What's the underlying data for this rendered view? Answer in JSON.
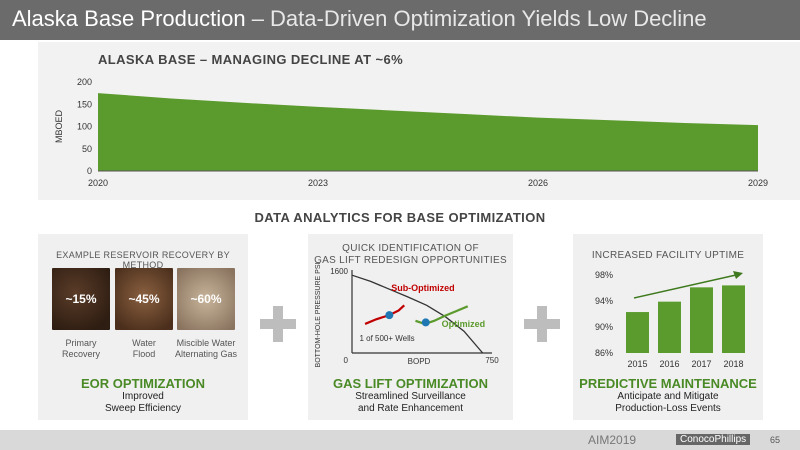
{
  "title": {
    "strong": "Alaska Base Production",
    "light": " – Data-Driven Optimization Yields Low Decline"
  },
  "top_chart": {
    "title": "ALASKA BASE – MANAGING DECLINE AT ~6%"
  },
  "mid_title": "DATA ANALYTICS FOR BASE OPTIMIZATION",
  "panel1": {
    "label": "EXAMPLE RESERVOIR RECOVERY BY METHOD",
    "rocks": [
      {
        "pct": "~15%",
        "label_l1": "Primary",
        "label_l2": "Recovery"
      },
      {
        "pct": "~45%",
        "label_l1": "Water",
        "label_l2": "Flood"
      },
      {
        "pct": "~60%",
        "label_l1": "Miscible Water",
        "label_l2": "Alternating Gas"
      }
    ],
    "heading": "EOR OPTIMIZATION",
    "sub_l1": "Improved",
    "sub_l2": "Sweep Efficiency"
  },
  "panel2": {
    "label_l1": "QUICK IDENTIFICATION OF",
    "label_l2": "GAS LIFT REDESIGN OPPORTUNITIES",
    "heading": "GAS LIFT OPTIMIZATION",
    "sub_l1": "Streamlined Surveillance",
    "sub_l2": "and Rate Enhancement"
  },
  "panel3": {
    "label": "INCREASED FACILITY UPTIME",
    "heading": "PREDICTIVE MAINTENANCE",
    "sub_l1": "Anticipate and Mitigate",
    "sub_l2": "Production-Loss Events"
  },
  "footer": {
    "am": "AIM",
    "year": "2019",
    "company": "ConocoPhillips",
    "page": "65"
  },
  "colors": {
    "green": "#5b9a2c",
    "dark_green": "#4a8a26",
    "red": "#c00000",
    "marker": "#1f77b4"
  },
  "chart_data": [
    {
      "type": "area",
      "title": "ALASKA BASE – MANAGING DECLINE AT ~6%",
      "ylabel": "MBOED",
      "xlabel": "",
      "x": [
        2020,
        2021,
        2022,
        2023,
        2024,
        2025,
        2026,
        2027,
        2028,
        2029
      ],
      "values": [
        175,
        163,
        153,
        144,
        136,
        128,
        120,
        114,
        108,
        103
      ],
      "xticks": [
        "2020",
        "2023",
        "2026",
        "2029"
      ],
      "yticks": [
        "0",
        "50",
        "100",
        "150",
        "200"
      ],
      "xlim": [
        2020,
        2029
      ],
      "ylim": [
        0,
        200
      ],
      "grid": false
    },
    {
      "type": "line",
      "title": "QUICK IDENTIFICATION OF GAS LIFT REDESIGN OPPORTUNITIES",
      "xlabel": "BOPD",
      "ylabel": "BOTTOM-HOLE PRESSURE PSI",
      "xticks": [
        "0",
        "750"
      ],
      "yticks": [
        "1600"
      ],
      "xlim": [
        0,
        750
      ],
      "ylim": [
        0,
        1600
      ],
      "annotation": "1 of 500+ Wells",
      "series": [
        {
          "name": "",
          "x": [
            0,
            100,
            200,
            300,
            400,
            500,
            600,
            700
          ],
          "y": [
            1500,
            1380,
            1230,
            1080,
            920,
            700,
            420,
            0
          ]
        },
        {
          "name": "Sub-Optimized",
          "x": [
            70,
            130,
            200,
            250,
            280
          ],
          "y": [
            560,
            650,
            730,
            820,
            920
          ]
        },
        {
          "name": "Optimized",
          "x": [
            340,
            390,
            440,
            500,
            560,
            620
          ],
          "y": [
            620,
            560,
            620,
            720,
            810,
            900
          ]
        }
      ],
      "points": [
        {
          "name": "Sub-Optimized",
          "x": 200,
          "y": 730
        },
        {
          "name": "Optimized",
          "x": 395,
          "y": 590
        }
      ]
    },
    {
      "type": "bar",
      "title": "INCREASED FACILITY UPTIME",
      "categories": [
        "2015",
        "2016",
        "2017",
        "2018"
      ],
      "values": [
        92.3,
        93.9,
        96.1,
        96.4
      ],
      "yticks": [
        "86%",
        "90%",
        "94%",
        "98%"
      ],
      "ylim": [
        86,
        100
      ],
      "grid": false
    }
  ]
}
